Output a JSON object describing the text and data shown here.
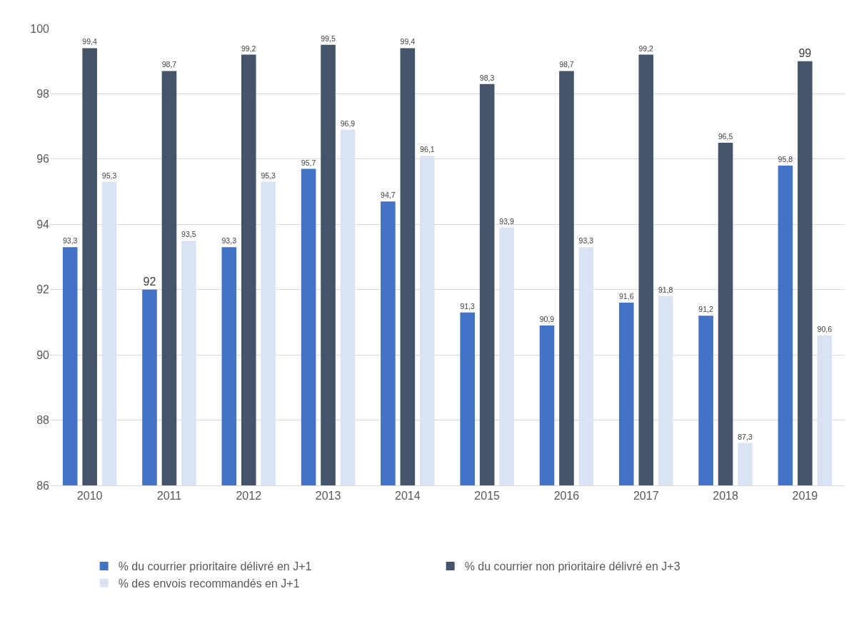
{
  "chart_data": {
    "type": "bar",
    "categories": [
      "2010",
      "2011",
      "2012",
      "2013",
      "2014",
      "2015",
      "2016",
      "2017",
      "2018",
      "2019"
    ],
    "series": [
      {
        "name": "% du courrier prioritaire délivré en J+1",
        "color": "#4472c4",
        "values": [
          93.3,
          92,
          93.3,
          95.7,
          94.7,
          91.3,
          90.9,
          91.6,
          91.2,
          95.8
        ],
        "value_labels": [
          "93,3",
          "92",
          "93,3",
          "95,7",
          "94,7",
          "91,3",
          "90,9",
          "91,6",
          "91,2",
          "95,8"
        ]
      },
      {
        "name": "% du courrier non prioritaire délivré en J+3",
        "color": "#44546a",
        "values": [
          99.4,
          98.7,
          99.2,
          99.5,
          99.4,
          98.3,
          98.7,
          99.2,
          96.5,
          99
        ],
        "value_labels": [
          "99,4",
          "98,7",
          "99,2",
          "99,5",
          "99,4",
          "98,3",
          "98,7",
          "99,2",
          "96,5",
          "99"
        ]
      },
      {
        "name": "% des envois recommandés en J+1",
        "color": "#dae3f3",
        "values": [
          95.3,
          93.5,
          95.3,
          96.9,
          96.1,
          93.9,
          93.3,
          91.8,
          87.3,
          90.6
        ],
        "value_labels": [
          "95,3",
          "93,5",
          "95,3",
          "96,9",
          "96,1",
          "93,9",
          "93,3",
          "91,8",
          "87,3",
          "90,6"
        ]
      }
    ],
    "ylim": [
      86,
      100
    ],
    "yticks": [
      86,
      88,
      90,
      92,
      94,
      96,
      98,
      100
    ],
    "grid": "y",
    "legend": "bottom"
  }
}
